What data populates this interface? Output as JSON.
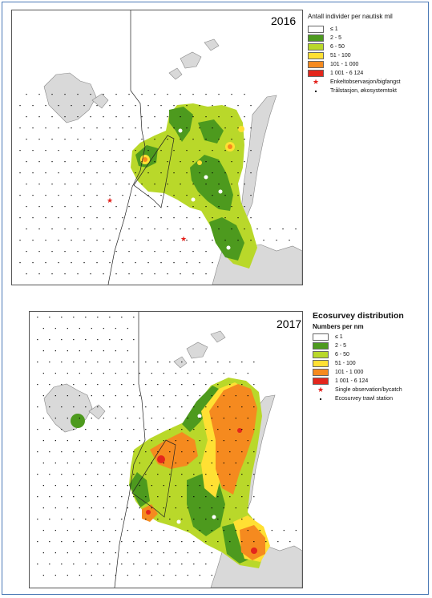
{
  "panels": [
    {
      "year": "2016",
      "legend_title": "Antall individer per nautisk mil",
      "legend_subtitle": "",
      "classes": [
        {
          "label": "≤ 1",
          "color": "#ffffff"
        },
        {
          "label": "2 - 5",
          "color": "#4d9a1e"
        },
        {
          "label": "6 - 50",
          "color": "#b9d82a"
        },
        {
          "label": "51 - 100",
          "color": "#ffe033"
        },
        {
          "label": "101 - 1 000",
          "color": "#f58a1f"
        },
        {
          "label": "1 001 - 6 124",
          "color": "#e3261c"
        }
      ],
      "symbols": [
        {
          "label": "Enkeltobservasjon/bigfangst",
          "kind": "star"
        },
        {
          "label": "Trålstasjon, økosystemtokt",
          "kind": "dot"
        }
      ]
    },
    {
      "year": "2017",
      "legend_title": "Ecosurvey distribution",
      "legend_subtitle": "Numbers per nm",
      "classes": [
        {
          "label": "≤ 1",
          "color": "#ffffff"
        },
        {
          "label": "2 - 5",
          "color": "#4d9a1e"
        },
        {
          "label": "6 - 50",
          "color": "#b9d82a"
        },
        {
          "label": "51 - 100",
          "color": "#ffe033"
        },
        {
          "label": "101 - 1 000",
          "color": "#f58a1f"
        },
        {
          "label": "1 001 - 6 124",
          "color": "#e3261c"
        }
      ],
      "symbols": [
        {
          "label": "Single observation/bycatch",
          "kind": "star"
        },
        {
          "label": "Ecosurvey trawl station",
          "kind": "dot"
        }
      ]
    }
  ]
}
